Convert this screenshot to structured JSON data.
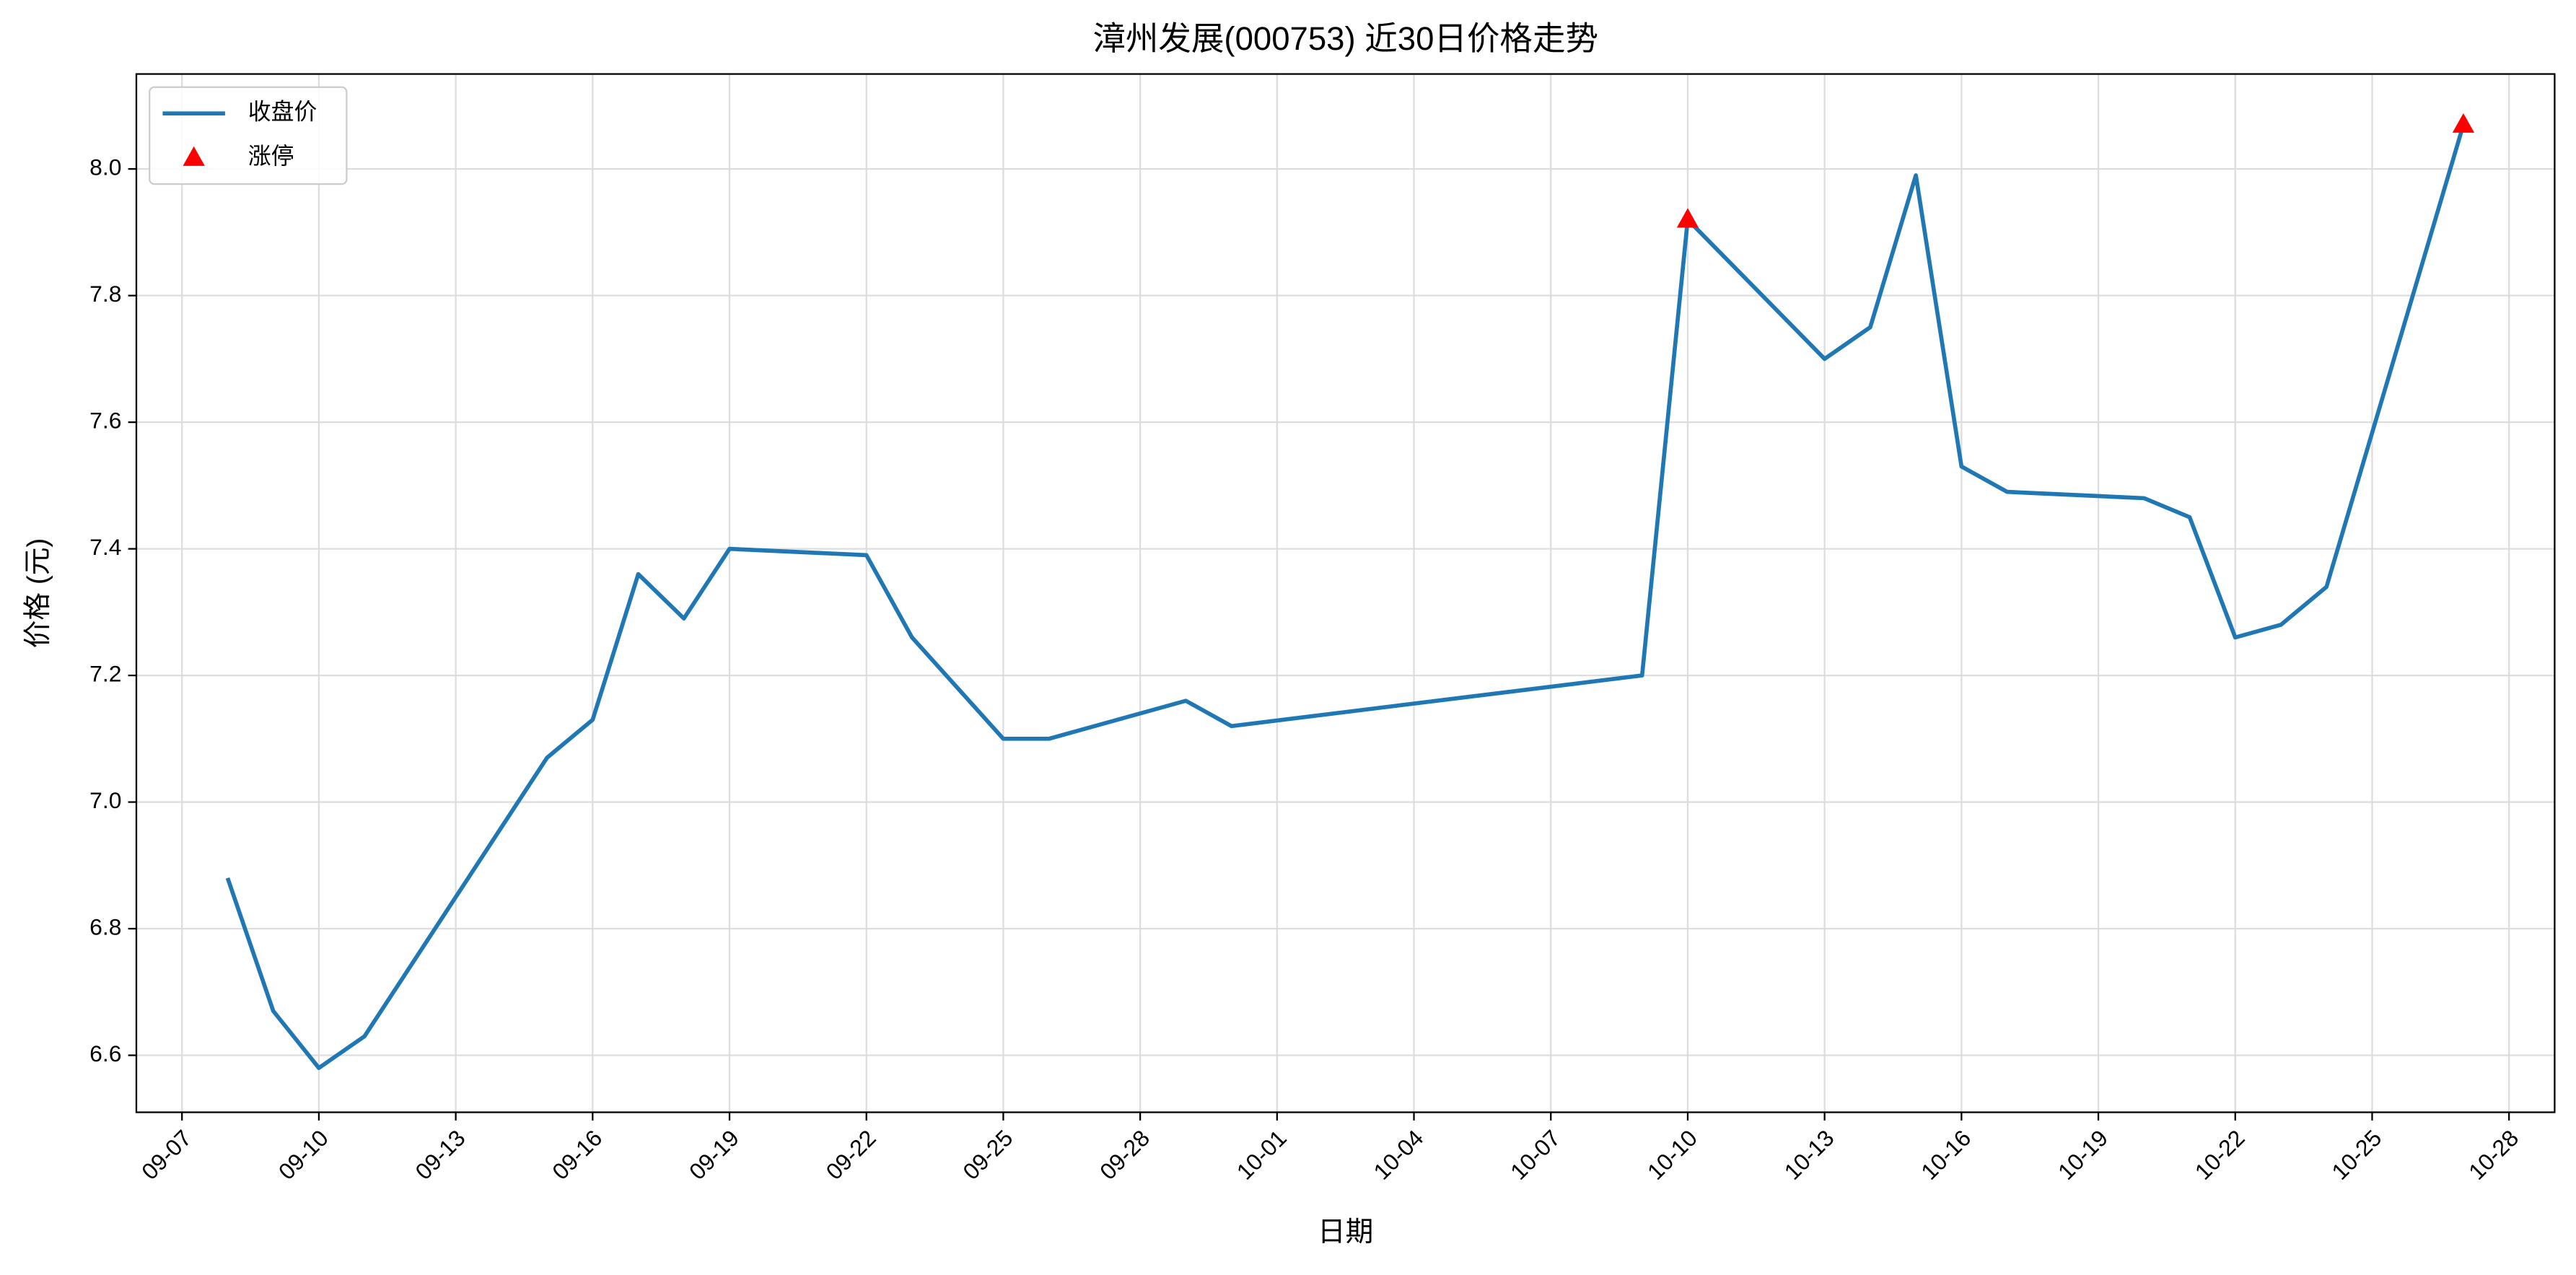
{
  "chart_data": {
    "type": "line",
    "title": "漳州发展(000753) 近30日价格走势",
    "xlabel": "日期",
    "ylabel": "价格 (元)",
    "series": [
      {
        "name": "收盘价",
        "type": "line",
        "color": "#1f77b4",
        "x": [
          "09-08",
          "09-09",
          "09-10",
          "09-11",
          "09-15",
          "09-16",
          "09-17",
          "09-18",
          "09-19",
          "09-22",
          "09-23",
          "09-25",
          "09-26",
          "09-29",
          "09-30",
          "10-09",
          "10-10",
          "10-13",
          "10-14",
          "10-15",
          "10-16",
          "10-17",
          "10-20",
          "10-21",
          "10-22",
          "10-23",
          "10-24",
          "10-27"
        ],
        "values": [
          6.88,
          6.67,
          6.58,
          6.63,
          7.07,
          7.13,
          7.36,
          7.29,
          7.4,
          7.39,
          7.26,
          7.1,
          7.1,
          7.16,
          7.12,
          7.2,
          7.92,
          7.7,
          7.75,
          7.99,
          7.53,
          7.49,
          7.48,
          7.45,
          7.26,
          7.28,
          7.34,
          8.07
        ]
      },
      {
        "name": "涨停",
        "type": "scatter",
        "color": "#ff0000",
        "x": [
          "10-10",
          "10-27"
        ],
        "values": [
          7.92,
          8.07
        ]
      }
    ],
    "xlim": [
      "09-06",
      "10-29"
    ],
    "xticks": [
      "09-07",
      "09-10",
      "09-13",
      "09-16",
      "09-19",
      "09-22",
      "09-25",
      "09-28",
      "10-01",
      "10-04",
      "10-07",
      "10-10",
      "10-13",
      "10-16",
      "10-19",
      "10-22",
      "10-25",
      "10-28"
    ],
    "ylim": [
      6.51,
      8.15
    ],
    "yticks": [
      {
        "value": 6.6,
        "label": "6.6"
      },
      {
        "value": 6.8,
        "label": "6.8"
      },
      {
        "value": 7.0,
        "label": "7.0"
      },
      {
        "value": 7.2,
        "label": "7.2"
      },
      {
        "value": 7.4,
        "label": "7.4"
      },
      {
        "value": 7.6,
        "label": "7.6"
      },
      {
        "value": 7.8,
        "label": "7.8"
      },
      {
        "value": 8.0,
        "label": "8.0"
      }
    ],
    "grid": true,
    "legend": "upper left"
  }
}
